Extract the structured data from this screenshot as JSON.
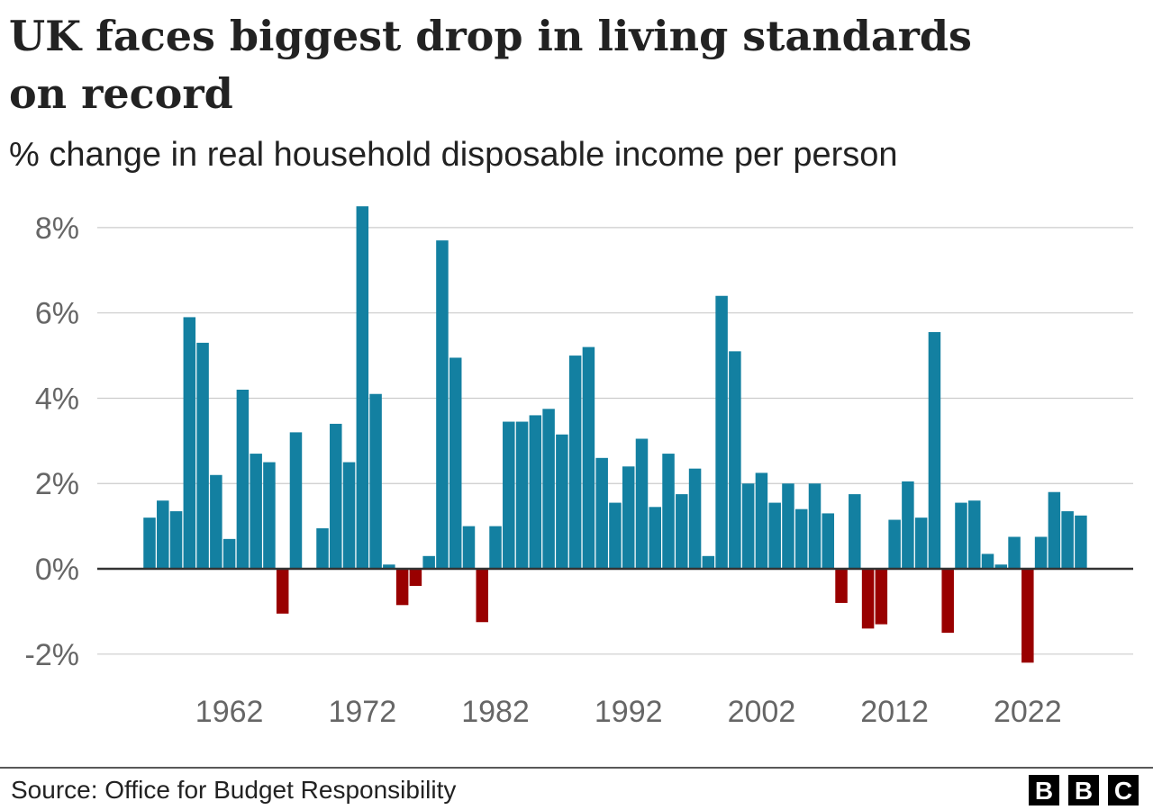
{
  "chart_data": {
    "type": "bar",
    "title": [
      "UK faces biggest drop in living standards",
      "on record"
    ],
    "subtitle": "% change in real household disposable income per person",
    "source": "Source: Office for Budget Responsibility",
    "logo": [
      "B",
      "B",
      "C"
    ],
    "categories": [
      null,
      null,
      null,
      null,
      null,
      null,
      "1962",
      null,
      null,
      null,
      null,
      null,
      null,
      null,
      null,
      null,
      "1972",
      null,
      null,
      null,
      null,
      null,
      null,
      null,
      null,
      null,
      "1982",
      null,
      null,
      null,
      null,
      null,
      null,
      null,
      null,
      null,
      "1992",
      null,
      null,
      null,
      null,
      null,
      null,
      null,
      null,
      null,
      "2002",
      null,
      null,
      null,
      null,
      null,
      null,
      null,
      null,
      null,
      "2012",
      null,
      null,
      null,
      null,
      null,
      null,
      null,
      null,
      null,
      "2022",
      null,
      null,
      null,
      null
    ],
    "values": [
      1.2,
      1.6,
      1.35,
      5.9,
      5.3,
      2.2,
      0.7,
      4.2,
      2.7,
      2.5,
      -1.05,
      3.2,
      0,
      0.95,
      3.4,
      2.5,
      8.5,
      4.1,
      0.1,
      -0.85,
      -0.4,
      0.3,
      7.7,
      4.95,
      1.0,
      -1.25,
      1.0,
      3.45,
      3.45,
      3.6,
      3.75,
      3.15,
      5.0,
      5.2,
      2.6,
      1.55,
      2.4,
      3.05,
      1.45,
      2.7,
      1.75,
      2.35,
      0.3,
      6.4,
      5.1,
      2.0,
      2.25,
      1.55,
      2.0,
      1.4,
      2.0,
      1.3,
      -0.8,
      1.75,
      -1.4,
      -1.3,
      1.15,
      2.05,
      1.2,
      5.55,
      -1.5,
      1.55,
      1.6,
      0.35,
      0.1,
      0.75,
      -2.2,
      0.75,
      1.8,
      1.35,
      1.25
    ],
    "color": "#1380a1",
    "negative_color": "#990000",
    "ylim": [
      -2.5,
      8.8
    ],
    "yticks": [
      {
        "value": -2,
        "label": "-2%"
      },
      {
        "value": 0,
        "label": "0%"
      },
      {
        "value": 2,
        "label": "2%"
      },
      {
        "value": 4,
        "label": "4%"
      },
      {
        "value": 6,
        "label": "6%"
      },
      {
        "value": 8,
        "label": "8%"
      }
    ],
    "grid": true
  }
}
